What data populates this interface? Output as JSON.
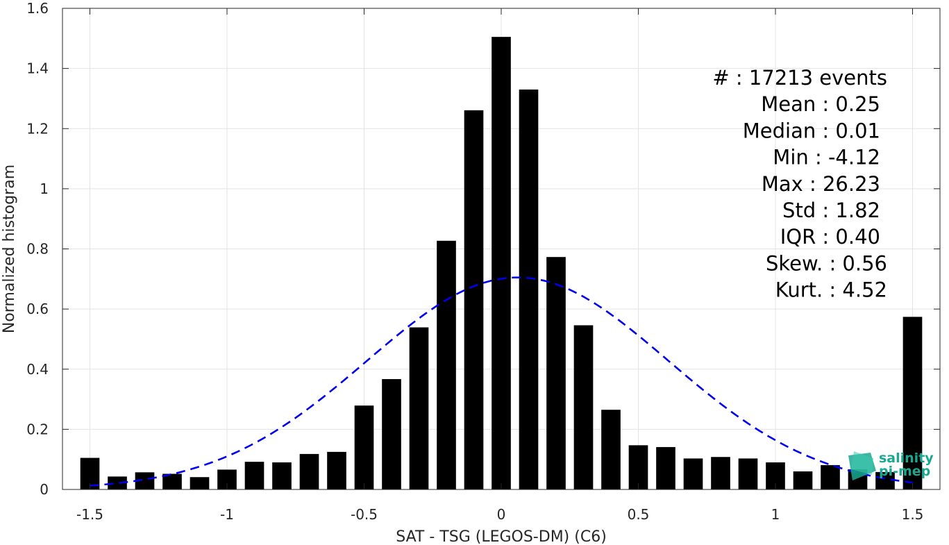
{
  "chart_data": {
    "type": "bar",
    "title": "",
    "xlabel": "SAT - TSG (LEGOS-DM) (C6)",
    "ylabel": "Normalized histogram",
    "xlim": [
      -1.6,
      1.6
    ],
    "ylim": [
      0,
      1.6
    ],
    "grid": true,
    "x_ticks": [
      -1.5,
      -1,
      -0.5,
      0,
      0.5,
      1,
      1.5
    ],
    "x_tick_labels": [
      "-1.5",
      "-1",
      "-0.5",
      "0",
      "0.5",
      "1",
      "1.5"
    ],
    "y_ticks": [
      0,
      0.2,
      0.4,
      0.6,
      0.8,
      1,
      1.2,
      1.4,
      1.6
    ],
    "y_tick_labels": [
      "0",
      "0.2",
      "0.4",
      "0.6",
      "0.8",
      "1",
      "1.2",
      "1.4",
      "1.6"
    ],
    "bar_width": 0.07,
    "bar_color": "#000000",
    "x": [
      -1.5,
      -1.4,
      -1.3,
      -1.2,
      -1.1,
      -1.0,
      -0.9,
      -0.8,
      -0.7,
      -0.6,
      -0.5,
      -0.4,
      -0.3,
      -0.2,
      -0.1,
      0.0,
      0.1,
      0.2,
      0.3,
      0.4,
      0.5,
      0.6,
      0.7,
      0.8,
      0.9,
      1.0,
      1.1,
      1.2,
      1.3,
      1.4,
      1.5
    ],
    "values": [
      0.105,
      0.043,
      0.057,
      0.052,
      0.041,
      0.066,
      0.092,
      0.09,
      0.118,
      0.125,
      0.279,
      0.367,
      0.539,
      0.827,
      1.261,
      1.505,
      1.33,
      0.773,
      0.546,
      0.265,
      0.147,
      0.141,
      0.103,
      0.108,
      0.103,
      0.09,
      0.06,
      0.081,
      0.067,
      0.058,
      0.574
    ],
    "fit_curve": {
      "type": "normal",
      "mean": 0.06,
      "peak": 0.705,
      "sigma": 0.55,
      "range": [
        -1.5,
        1.5
      ],
      "color": "#0000ee",
      "style": "dashed"
    },
    "annotations": [
      "#  : 17213 events",
      "Mean : 0.25",
      "Median : 0.01",
      "Min : -4.12",
      "Max : 26.23",
      "Std : 1.82",
      "IQR : 0.40",
      "Skew. : 0.56",
      "Kurt. : 4.52"
    ]
  },
  "logo": {
    "line1": "salinity",
    "line2": "pi-mep",
    "color": "#1aa890"
  }
}
